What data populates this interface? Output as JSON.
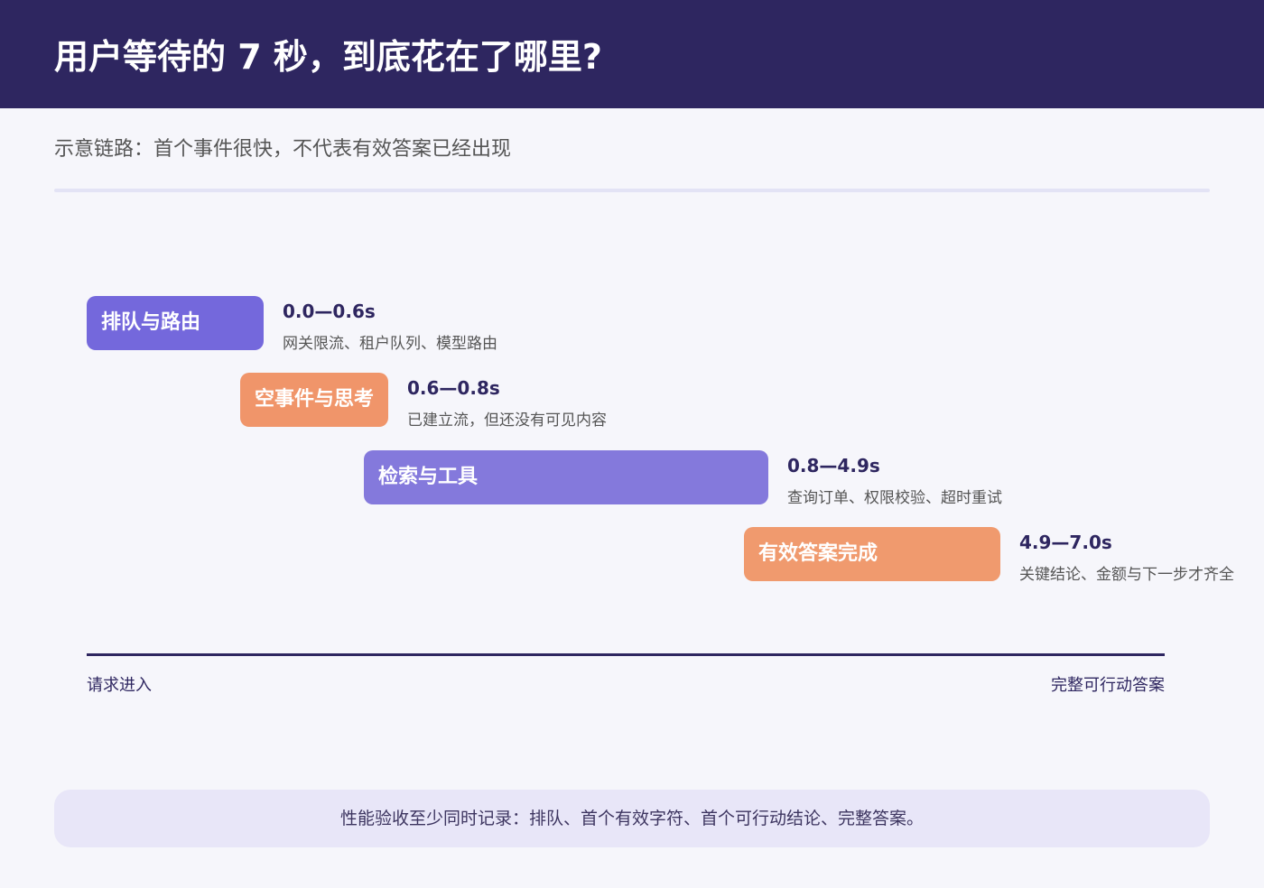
{
  "header": {
    "title": "用户等待的 7 秒，到底花在了哪里?"
  },
  "subtitle": "示意链路：首个事件很快，不代表有效答案已经出现",
  "stages": [
    {
      "label": "排队与路由",
      "time": "0.0—0.6s",
      "description": "网关限流、租户队列、模型路由"
    },
    {
      "label": "空事件与思考",
      "time": "0.6—0.8s",
      "description": "已建立流，但还没有可见内容"
    },
    {
      "label": "检索与工具",
      "time": "0.8—4.9s",
      "description": "查询订单、权限校验、超时重试"
    },
    {
      "label": "有效答案完成",
      "time": "4.9—7.0s",
      "description": "关键结论、金额与下一步才齐全"
    }
  ],
  "axis": {
    "start": "请求进入",
    "end": "完整可行动答案"
  },
  "note": "性能验收至少同时记录：排队、首个有效字符、首个可行动结论、完整答案。"
}
